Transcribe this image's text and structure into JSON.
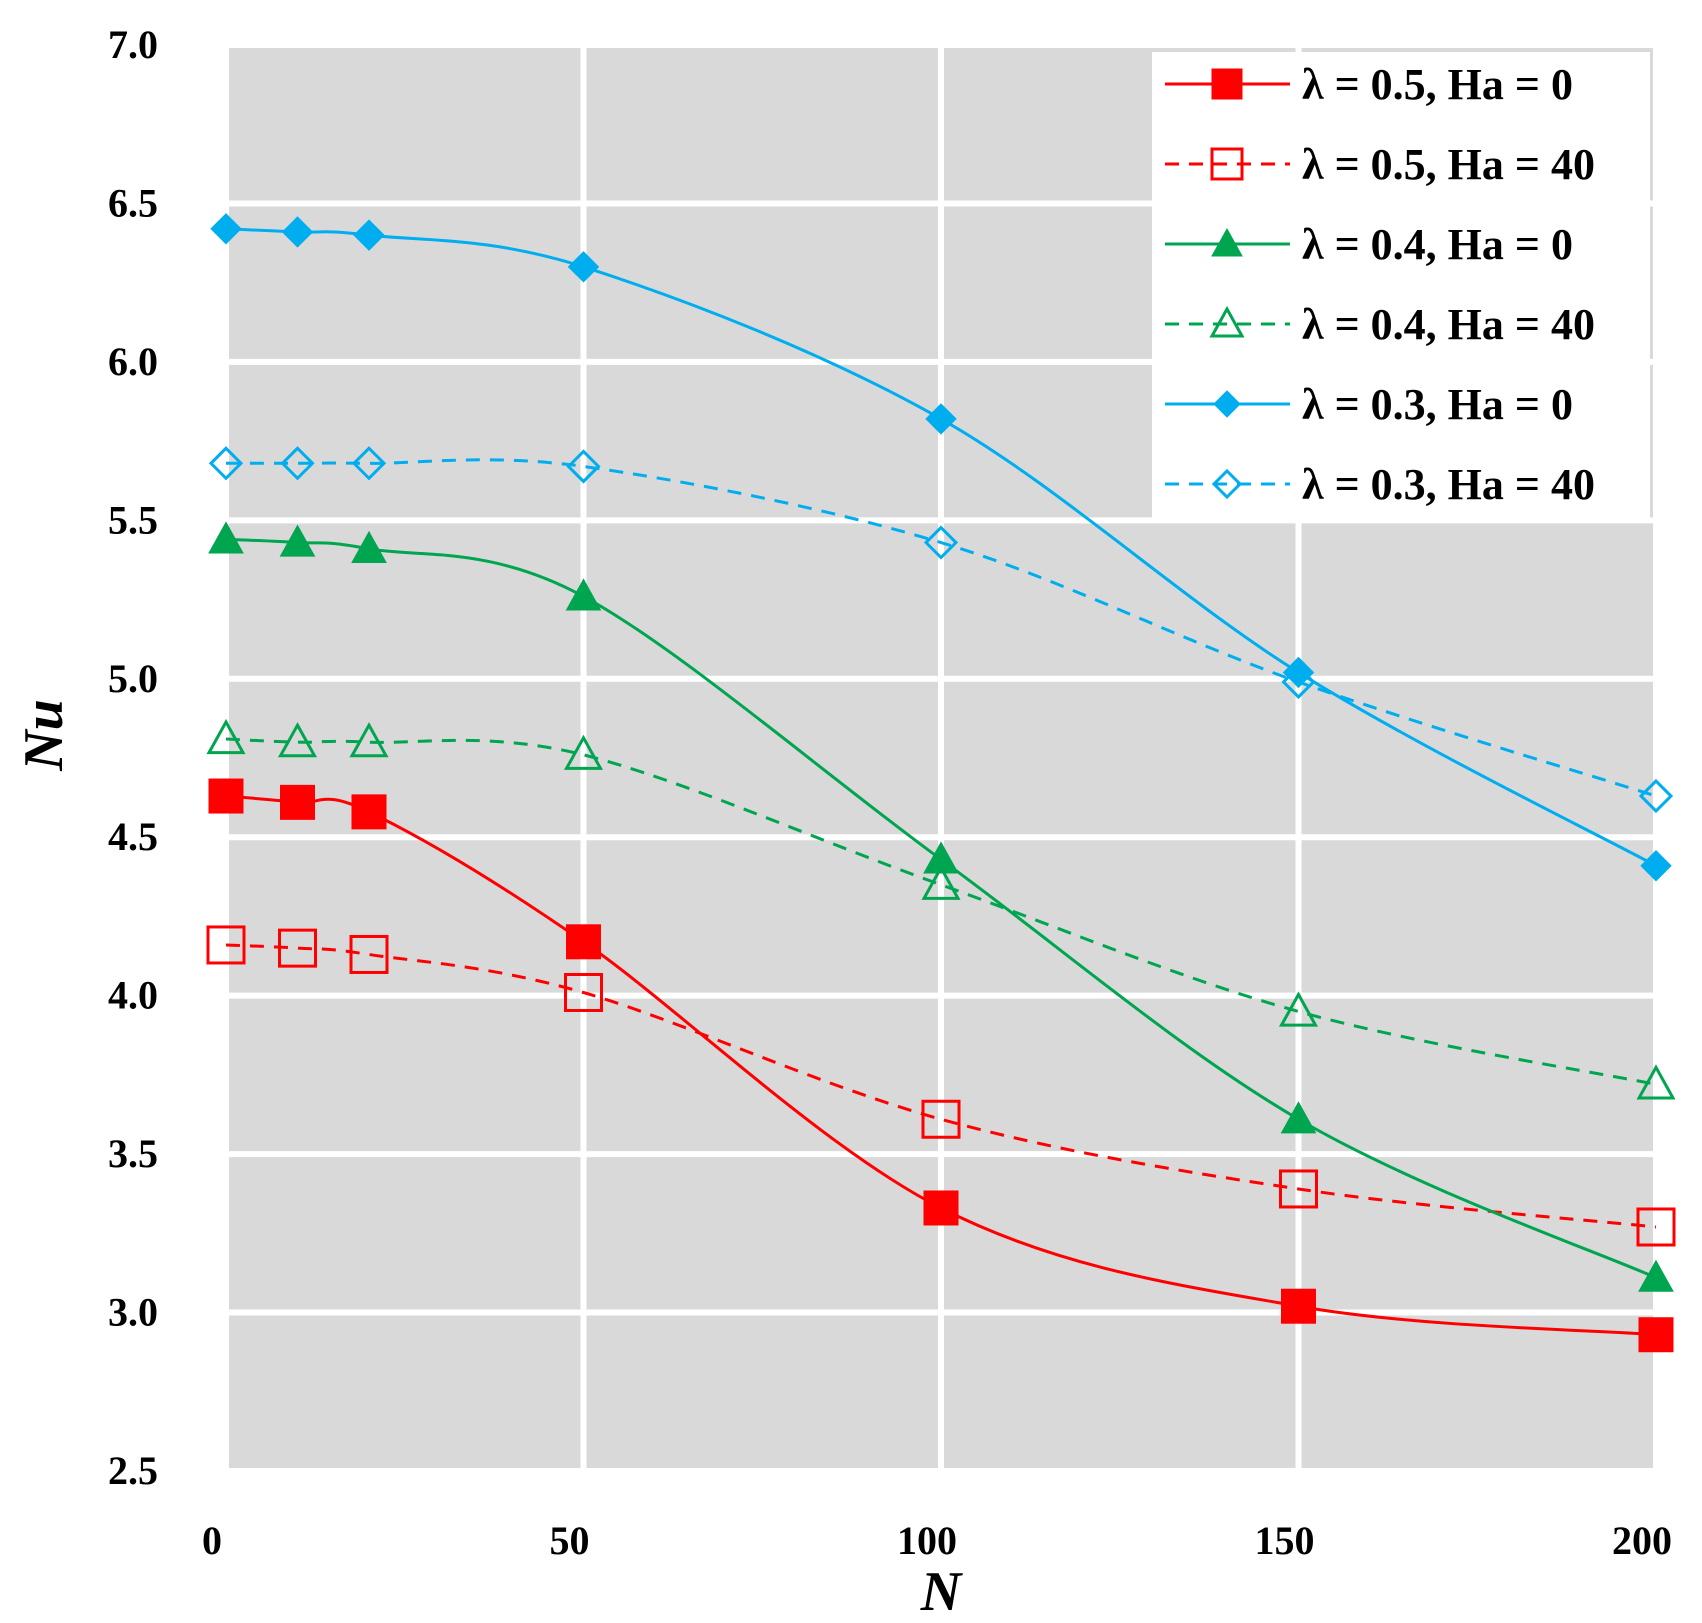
{
  "chart_data": {
    "type": "line",
    "title": "",
    "xlabel": "N",
    "ylabel": "Nu",
    "xlim": [
      0,
      200
    ],
    "ylim": [
      2.5,
      7.0
    ],
    "xticks": [
      0,
      50,
      100,
      150,
      200
    ],
    "xtick_labels": [
      "0",
      "50",
      "100",
      "150",
      "200"
    ],
    "yticks": [
      2.5,
      3.0,
      3.5,
      4.0,
      4.5,
      5.0,
      5.5,
      6.0,
      6.5,
      7.0
    ],
    "ytick_labels": [
      "2.5",
      "3.0",
      "3.5",
      "4.0",
      "4.5",
      "5.0",
      "5.5",
      "6.0",
      "6.5",
      "7.0"
    ],
    "grid": true,
    "legend_position": "top-right",
    "series": [
      {
        "name": "λ = 0.5, Ha = 0",
        "color": "#ff0000",
        "dashed": false,
        "marker": "square",
        "filled": true,
        "x": [
          0,
          10,
          20,
          50,
          100,
          150,
          200
        ],
        "y": [
          4.63,
          4.61,
          4.58,
          4.17,
          3.33,
          3.02,
          2.93
        ]
      },
      {
        "name": "λ = 0.5, Ha = 40",
        "color": "#ff0000",
        "dashed": true,
        "marker": "square",
        "filled": false,
        "x": [
          0,
          10,
          20,
          50,
          100,
          150,
          200
        ],
        "y": [
          4.16,
          4.15,
          4.13,
          4.01,
          3.61,
          3.39,
          3.27
        ]
      },
      {
        "name": "λ = 0.4, Ha = 0",
        "color": "#00a550",
        "dashed": false,
        "marker": "triangle",
        "filled": true,
        "x": [
          0,
          10,
          20,
          50,
          100,
          150,
          200
        ],
        "y": [
          5.44,
          5.43,
          5.41,
          5.26,
          4.43,
          3.61,
          3.11
        ]
      },
      {
        "name": "λ = 0.4, Ha = 40",
        "color": "#00a550",
        "dashed": true,
        "marker": "triangle",
        "filled": false,
        "x": [
          0,
          10,
          20,
          50,
          100,
          150,
          200
        ],
        "y": [
          4.81,
          4.8,
          4.8,
          4.76,
          4.35,
          3.95,
          3.72
        ]
      },
      {
        "name": "λ = 0.3, Ha = 0",
        "color": "#00aeef",
        "dashed": false,
        "marker": "diamond",
        "filled": true,
        "x": [
          0,
          10,
          20,
          50,
          100,
          150,
          200
        ],
        "y": [
          6.42,
          6.41,
          6.4,
          6.3,
          5.82,
          5.02,
          4.41
        ]
      },
      {
        "name": "λ = 0.3, Ha = 40",
        "color": "#00aeef",
        "dashed": true,
        "marker": "diamond",
        "filled": false,
        "x": [
          0,
          10,
          20,
          50,
          100,
          150,
          200
        ],
        "y": [
          5.68,
          5.68,
          5.68,
          5.67,
          5.43,
          4.99,
          4.63
        ]
      }
    ]
  }
}
